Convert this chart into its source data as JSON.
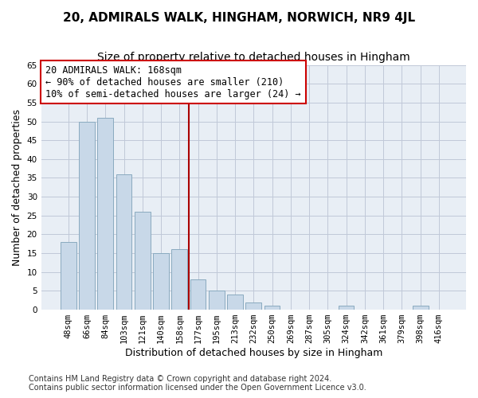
{
  "title": "20, ADMIRALS WALK, HINGHAM, NORWICH, NR9 4JL",
  "subtitle": "Size of property relative to detached houses in Hingham",
  "xlabel": "Distribution of detached houses by size in Hingham",
  "ylabel": "Number of detached properties",
  "bar_labels": [
    "48sqm",
    "66sqm",
    "84sqm",
    "103sqm",
    "121sqm",
    "140sqm",
    "158sqm",
    "177sqm",
    "195sqm",
    "213sqm",
    "232sqm",
    "250sqm",
    "269sqm",
    "287sqm",
    "305sqm",
    "324sqm",
    "342sqm",
    "361sqm",
    "379sqm",
    "398sqm",
    "416sqm"
  ],
  "bar_values": [
    18,
    50,
    51,
    36,
    26,
    15,
    16,
    8,
    5,
    4,
    2,
    1,
    0,
    0,
    0,
    1,
    0,
    0,
    0,
    1,
    0
  ],
  "bar_color": "#c8d8e8",
  "bar_edge_color": "#8aaabf",
  "vline_x_index": 6.5,
  "vline_color": "#aa0000",
  "annotation_text": "20 ADMIRALS WALK: 168sqm\n← 90% of detached houses are smaller (210)\n10% of semi-detached houses are larger (24) →",
  "annotation_box_color": "#ffffff",
  "annotation_box_edge": "#cc0000",
  "ylim": [
    0,
    65
  ],
  "yticks": [
    0,
    5,
    10,
    15,
    20,
    25,
    30,
    35,
    40,
    45,
    50,
    55,
    60,
    65
  ],
  "grid_color": "#c0c8d8",
  "bg_color": "#e8eef5",
  "footnote": "Contains HM Land Registry data © Crown copyright and database right 2024.\nContains public sector information licensed under the Open Government Licence v3.0.",
  "title_fontsize": 11,
  "subtitle_fontsize": 10,
  "xlabel_fontsize": 9,
  "ylabel_fontsize": 9,
  "tick_fontsize": 7.5,
  "annotation_fontsize": 8.5,
  "footnote_fontsize": 7
}
